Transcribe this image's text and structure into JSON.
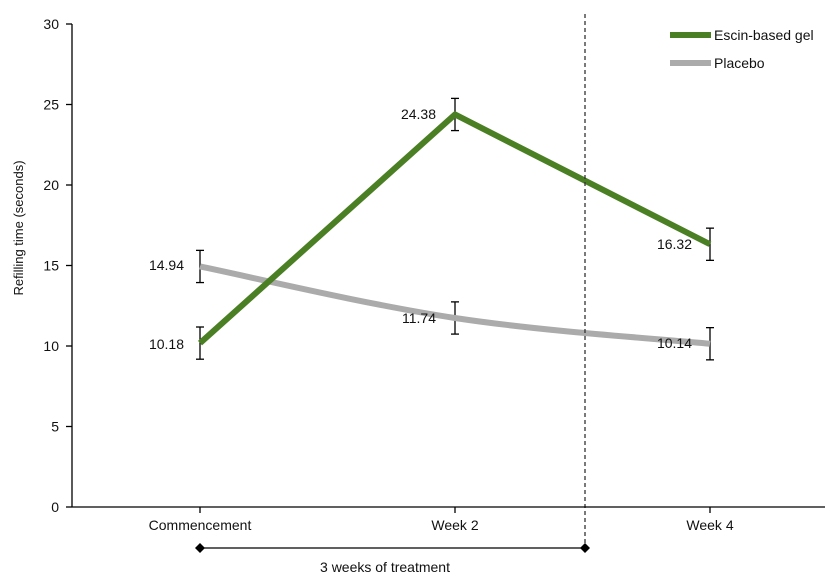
{
  "chart_data": {
    "type": "line",
    "title": "",
    "xlabel": "",
    "ylabel": "Refilling time (seconds)",
    "categories": [
      "Commencement",
      "Week 2",
      "Week 4"
    ],
    "ylim": [
      0,
      30
    ],
    "yticks": [
      0,
      5,
      10,
      15,
      20,
      25,
      30
    ],
    "grid": false,
    "legend_position": "top-right",
    "series": [
      {
        "name": "Escin-based gel",
        "color": "#4a7f24",
        "values": [
          10.18,
          24.38,
          16.32
        ],
        "labels": [
          "10.18",
          "24.38",
          "16.32"
        ],
        "error": [
          1,
          1,
          1
        ]
      },
      {
        "name": "Placebo",
        "color": "#ababab",
        "values": [
          14.94,
          11.74,
          10.14
        ],
        "labels": [
          "14.94",
          "11.74",
          "10.14"
        ],
        "error": [
          1,
          1,
          1
        ]
      }
    ],
    "annotations": {
      "treatment_period": "3 weeks of treatment"
    }
  }
}
